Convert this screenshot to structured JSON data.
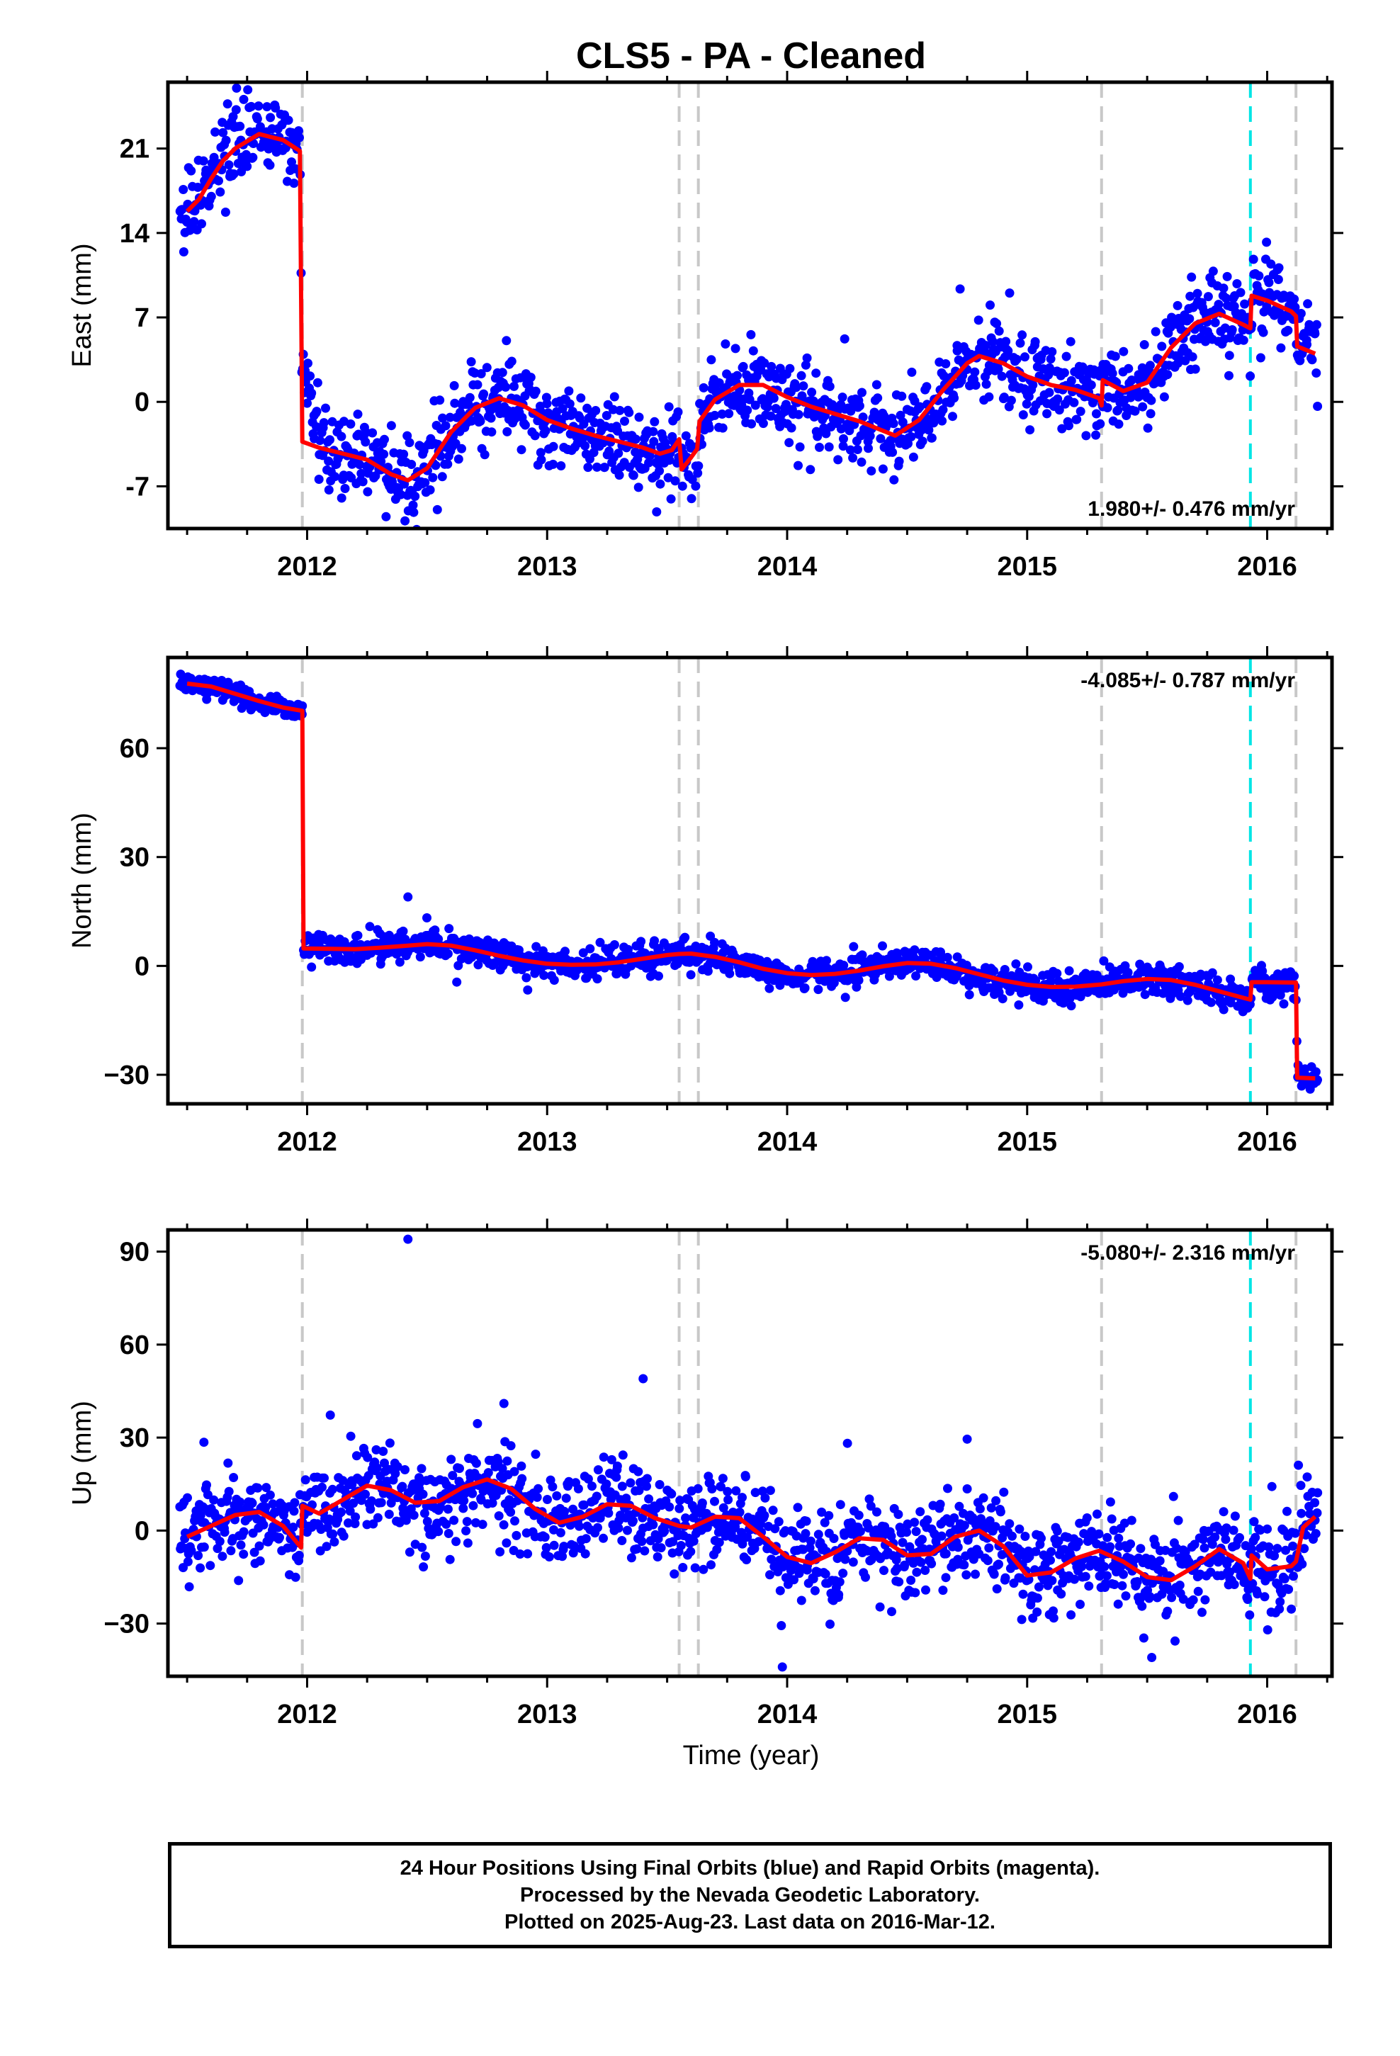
{
  "title": "CLS5  - PA - Cleaned",
  "xlabel": "Time (year)",
  "footer": {
    "lines": [
      "24 Hour Positions Using Final Orbits (blue) and Rapid Orbits (magenta).",
      "Processed by the Nevada Geodetic Laboratory.",
      "Plotted on 2025-Aug-23. Last data on 2016-Mar-12."
    ]
  },
  "colors": {
    "points": "#0000ff",
    "model": "#ff0000",
    "event_line": "#c8c8c8",
    "special_event_line": "#00e5e5",
    "frame": "#000000"
  },
  "chart_data": [
    {
      "type": "scatter",
      "ylabel": "East (mm)",
      "rate": "1.980+/- 0.476 mm/yr",
      "rate_position": "bottom-right",
      "xlim": [
        2011.42,
        2016.27
      ],
      "ylim": [
        -10.5,
        26.5
      ],
      "xticks": [
        "2012",
        "2013",
        "2014",
        "2015",
        "2016"
      ],
      "yticks": [
        "21",
        "14",
        "7",
        "0",
        "-7"
      ],
      "ytick_values": [
        21,
        14,
        7,
        0,
        -7
      ],
      "event_lines": [
        2011.98,
        2013.55,
        2013.63,
        2015.31,
        2016.12
      ],
      "special_event_lines": [
        2015.93
      ],
      "point_count": 1420,
      "model": [
        [
          2011.5,
          15.8
        ],
        [
          2011.55,
          16.8
        ],
        [
          2011.6,
          18.5
        ],
        [
          2011.65,
          20.0
        ],
        [
          2011.7,
          21.0
        ],
        [
          2011.8,
          22.2
        ],
        [
          2011.9,
          21.7
        ],
        [
          2011.97,
          20.8
        ],
        [
          2011.98,
          -3.3
        ],
        [
          2012.05,
          -3.8
        ],
        [
          2012.15,
          -4.3
        ],
        [
          2012.25,
          -4.8
        ],
        [
          2012.35,
          -6.0
        ],
        [
          2012.42,
          -6.5
        ],
        [
          2012.5,
          -5.5
        ],
        [
          2012.6,
          -2.5
        ],
        [
          2012.7,
          -0.5
        ],
        [
          2012.8,
          0.3
        ],
        [
          2012.9,
          -0.3
        ],
        [
          2013.0,
          -1.5
        ],
        [
          2013.1,
          -2.2
        ],
        [
          2013.2,
          -2.8
        ],
        [
          2013.3,
          -3.3
        ],
        [
          2013.4,
          -3.8
        ],
        [
          2013.47,
          -4.3
        ],
        [
          2013.52,
          -4.0
        ],
        [
          2013.55,
          -3.1
        ],
        [
          2013.56,
          -5.6
        ],
        [
          2013.6,
          -4.6
        ],
        [
          2013.625,
          -3.9
        ],
        [
          2013.635,
          -1.6
        ],
        [
          2013.7,
          0.2
        ],
        [
          2013.8,
          1.4
        ],
        [
          2013.9,
          1.4
        ],
        [
          2014.0,
          0.4
        ],
        [
          2014.1,
          -0.4
        ],
        [
          2014.2,
          -1.0
        ],
        [
          2014.3,
          -1.6
        ],
        [
          2014.4,
          -2.4
        ],
        [
          2014.45,
          -2.8
        ],
        [
          2014.55,
          -1.5
        ],
        [
          2014.65,
          1.0
        ],
        [
          2014.75,
          3.2
        ],
        [
          2014.8,
          3.8
        ],
        [
          2014.9,
          3.2
        ],
        [
          2015.0,
          2.1
        ],
        [
          2015.1,
          1.4
        ],
        [
          2015.2,
          1.0
        ],
        [
          2015.3,
          0.3
        ],
        [
          2015.31,
          -0.3
        ],
        [
          2015.315,
          1.8
        ],
        [
          2015.4,
          0.9
        ],
        [
          2015.5,
          1.6
        ],
        [
          2015.6,
          4.5
        ],
        [
          2015.7,
          6.5
        ],
        [
          2015.8,
          7.3
        ],
        [
          2015.9,
          6.4
        ],
        [
          2015.93,
          6.1
        ],
        [
          2015.935,
          8.8
        ],
        [
          2016.0,
          8.4
        ],
        [
          2016.1,
          7.5
        ],
        [
          2016.12,
          7.1
        ],
        [
          2016.125,
          4.6
        ],
        [
          2016.2,
          4.0
        ]
      ],
      "segments": [
        {
          "from": 2011.47,
          "to": 2011.98,
          "model": true,
          "sigma": 1.5
        },
        {
          "from": 2011.98,
          "to": 2012.06,
          "offset": 8.5,
          "decay": 0.04,
          "sigma": 1.5
        },
        {
          "from": 2012.06,
          "to": 2016.21,
          "model": true,
          "sigma": 1.7
        }
      ]
    },
    {
      "type": "scatter",
      "ylabel": "North (mm)",
      "rate": "-4.085+/- 0.787 mm/yr",
      "rate_position": "top-right",
      "xlim": [
        2011.42,
        2016.27
      ],
      "ylim": [
        -38,
        85
      ],
      "xticks": [
        "2012",
        "2013",
        "2014",
        "2015",
        "2016"
      ],
      "yticks": [
        "60",
        "30",
        "0",
        "−30"
      ],
      "ytick_values": [
        60,
        30,
        0,
        -30
      ],
      "event_lines": [
        2011.98,
        2013.55,
        2013.63,
        2015.31,
        2016.12
      ],
      "special_event_lines": [
        2015.93
      ],
      "point_count": 1420,
      "model": [
        [
          2011.5,
          77.8
        ],
        [
          2011.6,
          77.0
        ],
        [
          2011.7,
          75.0
        ],
        [
          2011.8,
          73.0
        ],
        [
          2011.9,
          71.2
        ],
        [
          2011.98,
          70.3
        ],
        [
          2011.985,
          4.8
        ],
        [
          2012.1,
          4.7
        ],
        [
          2012.2,
          4.6
        ],
        [
          2012.3,
          5.0
        ],
        [
          2012.4,
          5.5
        ],
        [
          2012.5,
          6.0
        ],
        [
          2012.6,
          5.6
        ],
        [
          2012.7,
          4.3
        ],
        [
          2012.8,
          2.8
        ],
        [
          2012.9,
          1.5
        ],
        [
          2013.0,
          0.6
        ],
        [
          2013.1,
          0.3
        ],
        [
          2013.2,
          0.4
        ],
        [
          2013.3,
          1.0
        ],
        [
          2013.4,
          2.0
        ],
        [
          2013.5,
          3.0
        ],
        [
          2013.55,
          3.3
        ],
        [
          2013.6,
          3.4
        ],
        [
          2013.7,
          2.5
        ],
        [
          2013.8,
          1.0
        ],
        [
          2013.9,
          -0.8
        ],
        [
          2014.0,
          -2.0
        ],
        [
          2014.1,
          -2.5
        ],
        [
          2014.2,
          -2.2
        ],
        [
          2014.3,
          -1.3
        ],
        [
          2014.4,
          -0.1
        ],
        [
          2014.5,
          0.8
        ],
        [
          2014.6,
          0.6
        ],
        [
          2014.7,
          -0.6
        ],
        [
          2014.8,
          -2.3
        ],
        [
          2014.9,
          -4.0
        ],
        [
          2015.0,
          -5.2
        ],
        [
          2015.1,
          -5.8
        ],
        [
          2015.2,
          -5.7
        ],
        [
          2015.31,
          -5.1
        ],
        [
          2015.4,
          -4.2
        ],
        [
          2015.5,
          -3.6
        ],
        [
          2015.6,
          -3.9
        ],
        [
          2015.7,
          -5.2
        ],
        [
          2015.8,
          -7.0
        ],
        [
          2015.9,
          -8.8
        ],
        [
          2015.93,
          -9.3
        ],
        [
          2015.935,
          -4.5
        ],
        [
          2016.0,
          -4.5
        ],
        [
          2016.12,
          -4.6
        ],
        [
          2016.125,
          -30.8
        ],
        [
          2016.2,
          -31.0
        ]
      ],
      "segments": [
        {
          "from": 2011.47,
          "to": 2011.98,
          "model": true,
          "sigma": 1.5
        },
        {
          "from": 2011.98,
          "to": 2016.21,
          "model": true,
          "sigma": 2.0
        }
      ],
      "outliers": [
        [
          2012.42,
          19.0
        ]
      ]
    },
    {
      "type": "scatter",
      "ylabel": "Up (mm)",
      "rate": "-5.080+/- 2.316 mm/yr",
      "rate_position": "top-right",
      "xlim": [
        2011.42,
        2016.27
      ],
      "ylim": [
        -47,
        97
      ],
      "xticks": [
        "2012",
        "2013",
        "2014",
        "2015",
        "2016"
      ],
      "yticks": [
        "90",
        "60",
        "30",
        "0",
        "−30"
      ],
      "ytick_values": [
        90,
        60,
        30,
        0,
        -30
      ],
      "event_lines": [
        2011.98,
        2013.55,
        2013.63,
        2015.31,
        2016.12
      ],
      "special_event_lines": [
        2015.93
      ],
      "point_count": 1420,
      "model": [
        [
          2011.5,
          -2.0
        ],
        [
          2011.6,
          1.5
        ],
        [
          2011.7,
          5.0
        ],
        [
          2011.8,
          6.0
        ],
        [
          2011.9,
          1.5
        ],
        [
          2011.975,
          -5.5
        ],
        [
          2011.98,
          8.0
        ],
        [
          2012.05,
          5.5
        ],
        [
          2012.15,
          10.0
        ],
        [
          2012.25,
          14.5
        ],
        [
          2012.35,
          13.0
        ],
        [
          2012.45,
          9.0
        ],
        [
          2012.55,
          9.5
        ],
        [
          2012.65,
          14.0
        ],
        [
          2012.75,
          16.5
        ],
        [
          2012.85,
          13.5
        ],
        [
          2012.95,
          7.0
        ],
        [
          2013.05,
          2.5
        ],
        [
          2013.15,
          4.5
        ],
        [
          2013.25,
          8.5
        ],
        [
          2013.35,
          8.0
        ],
        [
          2013.45,
          4.0
        ],
        [
          2013.55,
          1.5
        ],
        [
          2013.6,
          1.0
        ],
        [
          2013.7,
          4.5
        ],
        [
          2013.8,
          4.0
        ],
        [
          2013.9,
          -2.0
        ],
        [
          2014.0,
          -8.5
        ],
        [
          2014.1,
          -10.5
        ],
        [
          2014.2,
          -7.0
        ],
        [
          2014.3,
          -2.5
        ],
        [
          2014.4,
          -3.0
        ],
        [
          2014.5,
          -8.0
        ],
        [
          2014.6,
          -7.5
        ],
        [
          2014.7,
          -2.0
        ],
        [
          2014.8,
          0.0
        ],
        [
          2014.9,
          -5.0
        ],
        [
          2015.0,
          -14.5
        ],
        [
          2015.1,
          -13.5
        ],
        [
          2015.2,
          -9.0
        ],
        [
          2015.3,
          -6.5
        ],
        [
          2015.4,
          -10.0
        ],
        [
          2015.5,
          -15.0
        ],
        [
          2015.6,
          -16.0
        ],
        [
          2015.7,
          -11.5
        ],
        [
          2015.8,
          -6.0
        ],
        [
          2015.9,
          -10.5
        ],
        [
          2015.93,
          -15.5
        ],
        [
          2015.935,
          -8.0
        ],
        [
          2016.0,
          -12.5
        ],
        [
          2016.1,
          -11.5
        ],
        [
          2016.12,
          -10.0
        ],
        [
          2016.15,
          1.0
        ],
        [
          2016.2,
          4.5
        ]
      ],
      "segments": [
        {
          "from": 2011.47,
          "to": 2016.21,
          "model": true,
          "sigma": 7.5
        }
      ],
      "outliers": [
        [
          2012.42,
          94.0
        ],
        [
          2013.4,
          49.0
        ],
        [
          2012.82,
          41.0
        ],
        [
          2014.75,
          29.5
        ],
        [
          2011.57,
          28.5
        ],
        [
          2013.98,
          -44.0
        ]
      ]
    }
  ]
}
